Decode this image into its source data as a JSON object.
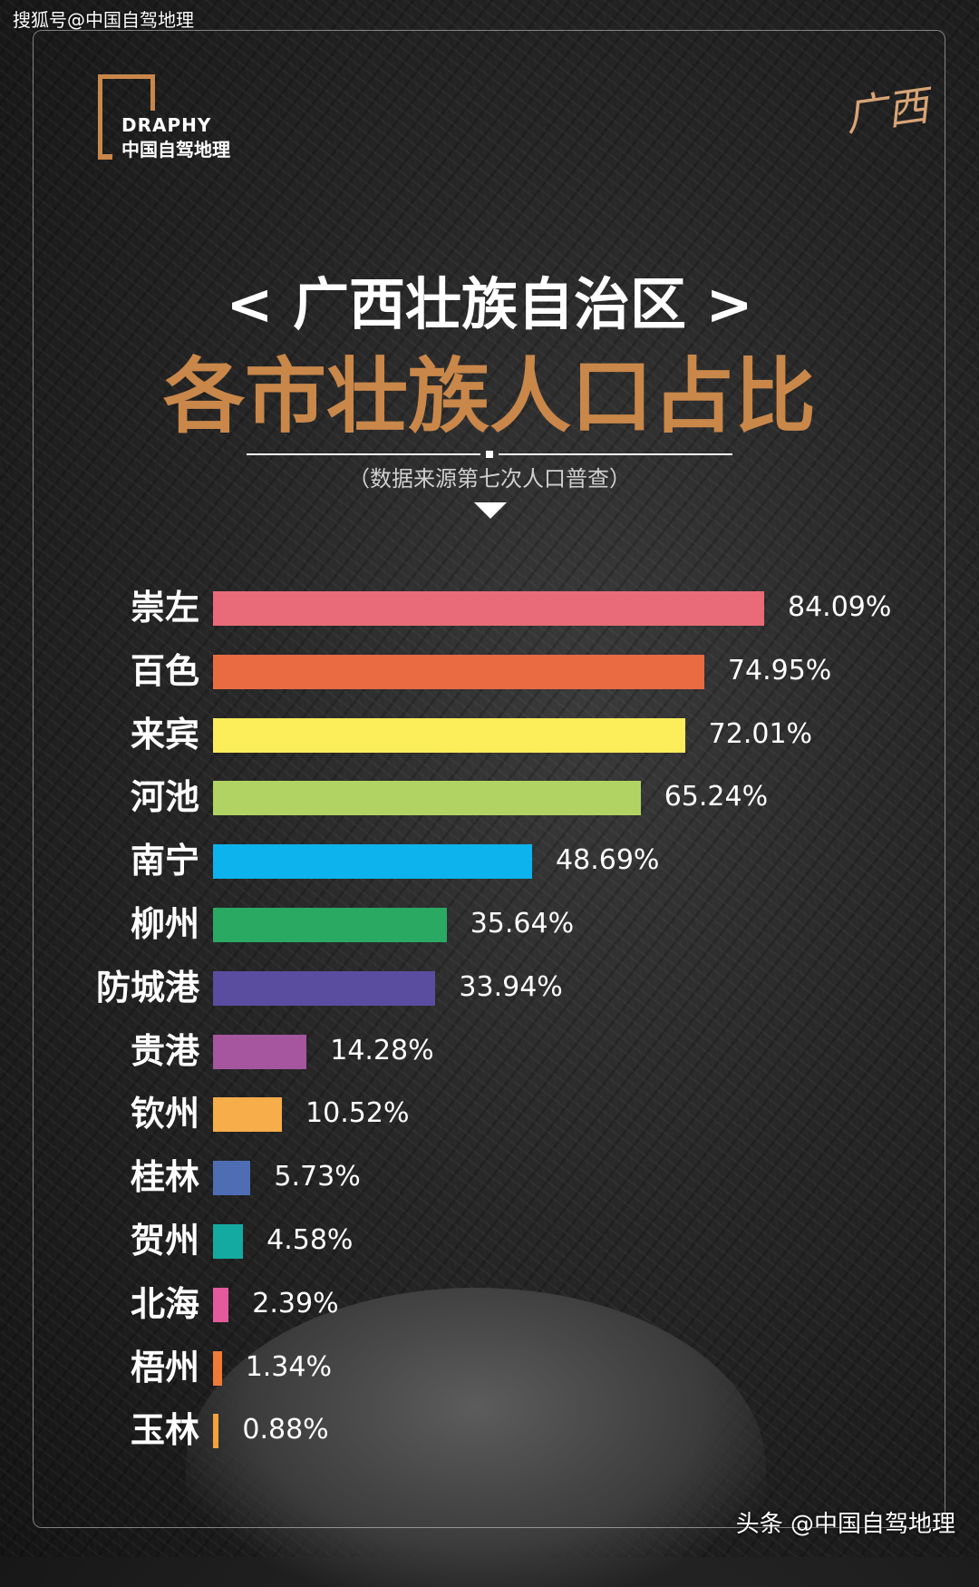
{
  "watermarks": {
    "top": "搜狐号@中国自驾地理",
    "bottom": "头条 @中国自驾地理"
  },
  "logo": {
    "en": "DRAPHY",
    "cn": "中国自驾地理",
    "calligraphy": "广西"
  },
  "header": {
    "title_line1": "< 广西壮族自治区 >",
    "title_line2": "各市壮族人口占比",
    "source": "（数据来源第七次人口普查）"
  },
  "colors": {
    "accent": "#c9874a"
  },
  "chart_data": {
    "type": "bar",
    "orientation": "horizontal",
    "title": "各市壮族人口占比",
    "unit": "%",
    "categories": [
      "崇左",
      "百色",
      "来宾",
      "河池",
      "南宁",
      "柳州",
      "防城港",
      "贵港",
      "钦州",
      "桂林",
      "贺州",
      "北海",
      "梧州",
      "玉林"
    ],
    "values": [
      84.09,
      74.95,
      72.01,
      65.24,
      48.69,
      35.64,
      33.94,
      14.28,
      10.52,
      5.73,
      4.58,
      2.39,
      1.34,
      0.88
    ],
    "labels": [
      "84.09%",
      "74.95%",
      "72.01%",
      "65.24%",
      "48.69%",
      "35.64%",
      "33.94%",
      "14.28%",
      "10.52%",
      "5.73%",
      "4.58%",
      "2.39%",
      "1.34%",
      "0.88%"
    ],
    "bar_colors": [
      "#e96a78",
      "#ea6b42",
      "#fcee5a",
      "#b1d363",
      "#0db3ec",
      "#2aa963",
      "#5a4da0",
      "#a5569f",
      "#f7ad4a",
      "#4e6db3",
      "#15aaa1",
      "#e35b9d",
      "#ef7b3a",
      "#f4a23c"
    ],
    "xlim": [
      0,
      84.09
    ]
  }
}
